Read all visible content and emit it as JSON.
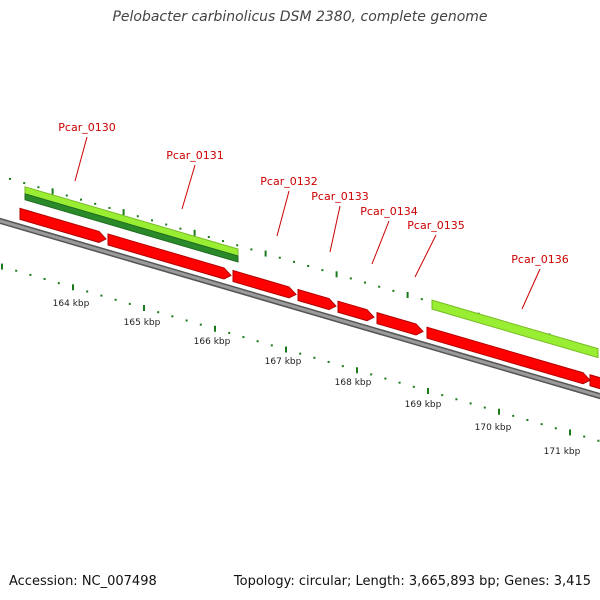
{
  "title": "Pelobacter carbinolicus DSM 2380, complete genome",
  "footer": {
    "accession_text": "Accession: NC_007498",
    "summary_text": "Topology: circular; Length: 3,665,893 bp; Genes: 3,415"
  },
  "colors": {
    "backbone": "#808080",
    "cds": "#ff0000",
    "light_green": "#99ee33",
    "dark_green": "#2a8a2a",
    "label": "#cc0000",
    "tick": "#1a7a1a"
  },
  "genes": [
    {
      "name": "Pcar_0130"
    },
    {
      "name": "Pcar_0131"
    },
    {
      "name": "Pcar_0132"
    },
    {
      "name": "Pcar_0133"
    },
    {
      "name": "Pcar_0134"
    },
    {
      "name": "Pcar_0135"
    },
    {
      "name": "Pcar_0136"
    }
  ],
  "scale_labels": [
    "164 kbp",
    "165 kbp",
    "166 kbp",
    "167 kbp",
    "168 kbp",
    "169 kbp",
    "170 kbp",
    "171 kbp"
  ]
}
